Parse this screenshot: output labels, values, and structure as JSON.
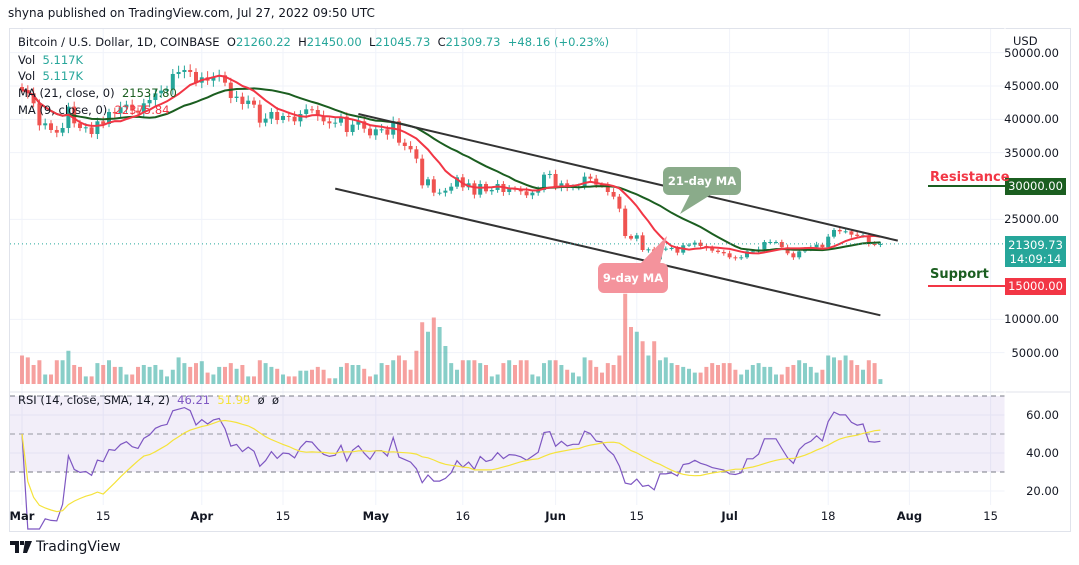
{
  "publisher": "shyna published on TradingView.com, Jul 27, 2022 09:50 UTC",
  "legend": {
    "symbol": "Bitcoin / U.S. Dollar, 1D, COINBASE",
    "o_label": "O",
    "o": "21260.22",
    "h_label": "H",
    "h": "21450.00",
    "l_label": "L",
    "l": "21045.73",
    "c_label": "C",
    "c": "21309.73",
    "change": "+48.16 (+0.23%)",
    "vol1_label": "Vol",
    "vol1": "5.117K",
    "vol2_label": "Vol",
    "vol2": "5.117K",
    "ma21_label": "MA (21, close, 0)",
    "ma21": "21537.80",
    "ma9_label": "MA (9, close, 0)",
    "ma9": "22375.84"
  },
  "rsi_legend": {
    "label": "RSI (14, close, SMA, 14, 2)",
    "rsi": "46.21",
    "sma": "51.99",
    "extra1": "ø",
    "extra2": "ø"
  },
  "price_axis": {
    "currency": "USD",
    "ticks": [
      "50000.00",
      "45000.00",
      "40000.00",
      "35000.00",
      "25000.00",
      "10000.00",
      "5000.00"
    ],
    "tick_values": [
      50000,
      45000,
      40000,
      35000,
      25000,
      10000,
      5000
    ],
    "current_price": "21309.73",
    "countdown": "14:09:14",
    "resistance_price": "30000.00",
    "support_price": "15000.00"
  },
  "rsi_axis": {
    "ticks": [
      "60.00",
      "40.00",
      "20.00"
    ],
    "tick_values": [
      60,
      40,
      20
    ]
  },
  "x_axis": {
    "labels": [
      {
        "text": "Mar",
        "day": 0,
        "bold": true
      },
      {
        "text": "15",
        "day": 14
      },
      {
        "text": "Apr",
        "day": 31,
        "bold": true
      },
      {
        "text": "15",
        "day": 45
      },
      {
        "text": "May",
        "day": 61,
        "bold": true
      },
      {
        "text": "16",
        "day": 76
      },
      {
        "text": "Jun",
        "day": 92,
        "bold": true
      },
      {
        "text": "15",
        "day": 106
      },
      {
        "text": "Jul",
        "day": 122,
        "bold": true
      },
      {
        "text": "18",
        "day": 139
      },
      {
        "text": "Aug",
        "day": 153,
        "bold": true
      },
      {
        "text": "15",
        "day": 167
      }
    ]
  },
  "annotations": {
    "resistance": "Resistance",
    "support": "Support",
    "ma21_callout": "21-day MA",
    "ma9_callout": "9-day MA"
  },
  "colors": {
    "up": "#26a69a",
    "down": "#ef5350",
    "ma21": "#1b5e20",
    "ma9": "#f23645",
    "rsi": "#7e57c2",
    "rsi_sma": "#f5e33b",
    "resistance_box": "#1b5e20",
    "support_box": "#f23645",
    "callout_green": "#8aab8a",
    "callout_red": "#f4939c"
  },
  "logo_text": "TradingView",
  "chart_data": {
    "type": "candlestick",
    "title": "Bitcoin / U.S. Dollar, 1D, COINBASE",
    "start_date": "2022-03-01",
    "end_date": "2022-07-27",
    "ylim": [
      0,
      52000
    ],
    "grid": true,
    "closes": [
      44400,
      43900,
      42400,
      39100,
      39400,
      38400,
      38000,
      38700,
      41900,
      39400,
      38700,
      38800,
      37800,
      39700,
      39300,
      41100,
      40900,
      41800,
      42200,
      41300,
      41000,
      42400,
      42900,
      43900,
      44300,
      44500,
      46800,
      47100,
      47400,
      47100,
      45500,
      46300,
      45800,
      46400,
      46600,
      45500,
      43200,
      43400,
      42300,
      42800,
      42200,
      39500,
      40100,
      41100,
      39900,
      40500,
      40400,
      39700,
      40800,
      41500,
      41400,
      40500,
      39700,
      39400,
      39500,
      40400,
      38100,
      39200,
      39700,
      38600,
      37600,
      38500,
      38500,
      37700,
      39700,
      36500,
      36000,
      35500,
      34100,
      30100,
      31000,
      29000,
      29000,
      29300,
      29900,
      31300,
      29800,
      30400,
      28700,
      30300,
      29200,
      29400,
      30300,
      29100,
      29600,
      29500,
      29200,
      28600,
      29000,
      29400,
      31700,
      31800,
      29800,
      30400,
      29700,
      29900,
      29900,
      31400,
      31100,
      30200,
      30100,
      29100,
      28400,
      26600,
      22500,
      22100,
      22600,
      20400,
      20500,
      19000,
      20600,
      20600,
      20700,
      20000,
      21100,
      21200,
      21500,
      21000,
      20700,
      20300,
      20100,
      19900,
      19300,
      19200,
      19300,
      20200,
      20200,
      20500,
      21600,
      21600,
      21600,
      20800,
      19900,
      19300,
      20200,
      20600,
      20800,
      21200,
      20800,
      22400,
      23400,
      23200,
      23200,
      22700,
      22500,
      22600,
      21300,
      21260,
      21310
    ],
    "volume_k": [
      30,
      28,
      20,
      25,
      10,
      10,
      25,
      25,
      35,
      20,
      18,
      8,
      8,
      22,
      20,
      25,
      18,
      18,
      10,
      10,
      18,
      20,
      18,
      20,
      15,
      8,
      15,
      28,
      22,
      18,
      22,
      24,
      12,
      10,
      18,
      18,
      22,
      16,
      20,
      8,
      8,
      25,
      22,
      18,
      16,
      10,
      8,
      8,
      14,
      14,
      15,
      18,
      15,
      6,
      6,
      18,
      22,
      20,
      20,
      16,
      8,
      10,
      22,
      20,
      25,
      30,
      25,
      15,
      35,
      65,
      55,
      70,
      60,
      40,
      22,
      15,
      25,
      25,
      25,
      22,
      20,
      8,
      10,
      22,
      25,
      20,
      25,
      25,
      10,
      8,
      22,
      25,
      25,
      20,
      15,
      12,
      8,
      28,
      25,
      18,
      12,
      22,
      20,
      30,
      95,
      60,
      55,
      45,
      30,
      45,
      25,
      28,
      22,
      20,
      18,
      16,
      12,
      12,
      18,
      22,
      20,
      22,
      22,
      15,
      10,
      15,
      20,
      22,
      18,
      18,
      10,
      10,
      18,
      20,
      25,
      22,
      18,
      12,
      15,
      30,
      28,
      25,
      30,
      25,
      20,
      15,
      25,
      22,
      5.117
    ],
    "indicators": [
      "MA 21",
      "MA 9",
      "RSI 14 with SMA 14"
    ],
    "rsi_levels": [
      70,
      50,
      30
    ],
    "trendlines": [
      {
        "name": "upper",
        "from": {
          "date": "2022-04-28",
          "price": 40800
        },
        "to": {
          "date": "2022-07-30",
          "price": 21800
        }
      },
      {
        "name": "lower",
        "from": {
          "date": "2022-04-24",
          "price": 29600
        },
        "to": {
          "date": "2022-07-27",
          "price": 10600
        }
      }
    ],
    "levels": {
      "resistance": 30000,
      "support": 15000
    }
  }
}
